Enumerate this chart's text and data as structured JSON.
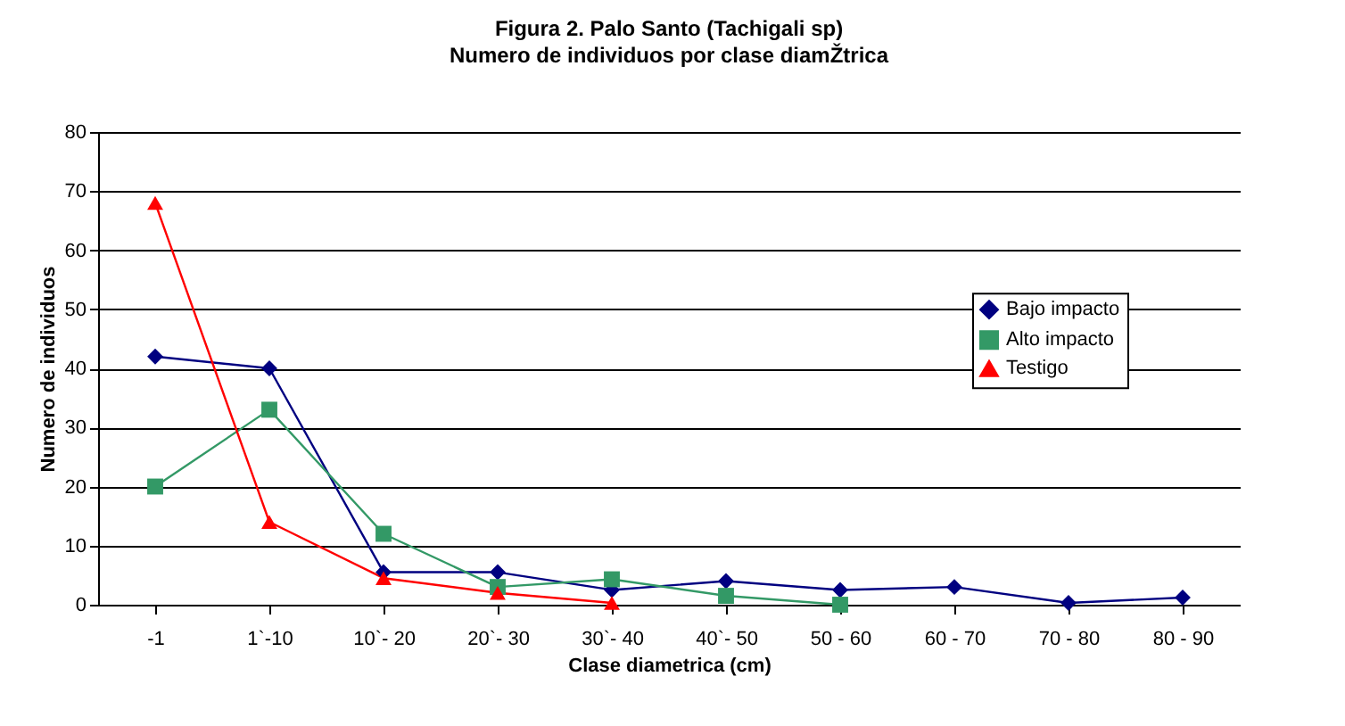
{
  "chart_data": {
    "type": "line",
    "title": "Figura 2. Palo Santo (Tachigali sp)",
    "subtitle": "Numero de individuos por clase diamŽtrica",
    "xlabel": "Clase diametrica (cm)",
    "ylabel": "Numero de individuos",
    "categories": [
      "-1",
      "1`-10",
      "10`- 20",
      "20`- 30",
      "30`- 40",
      "40`- 50",
      "50 - 60",
      "60 - 70",
      "70 - 80",
      "80 - 90"
    ],
    "series": [
      {
        "name": "Bajo impacto",
        "color": "#000080",
        "marker": "diamond",
        "values": [
          42,
          40,
          5.5,
          5.5,
          2.5,
          4,
          2.5,
          3,
          0.3,
          1.2
        ]
      },
      {
        "name": "Alto impacto",
        "color": "#339966",
        "marker": "square",
        "values": [
          20,
          33,
          12,
          3,
          4.3,
          1.5,
          0,
          null,
          null,
          null
        ]
      },
      {
        "name": "Testigo",
        "color": "#ff0000",
        "marker": "triangle",
        "values": [
          68,
          14,
          4.5,
          2,
          0.3,
          null,
          null,
          null,
          null,
          null
        ]
      }
    ],
    "ylim": [
      0,
      80
    ],
    "yticks": [
      0,
      10,
      20,
      30,
      40,
      50,
      60,
      70,
      80
    ],
    "grid": "y",
    "legend": "right",
    "line_style": "solid"
  }
}
